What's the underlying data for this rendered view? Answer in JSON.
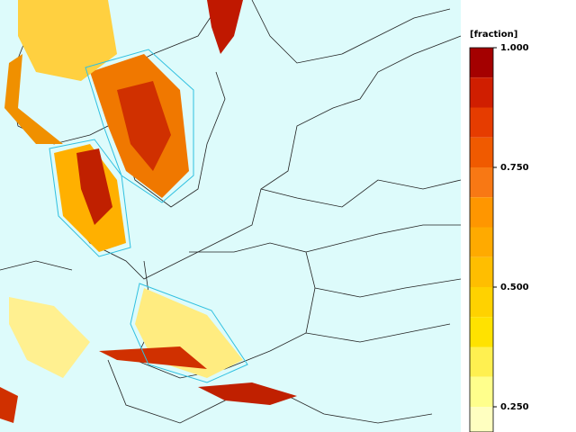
{
  "colorbar": {
    "label": "[fraction]",
    "lim": [
      0.1875,
      1
    ],
    "ticks": [
      {
        "value": 1,
        "label": "1.000"
      },
      {
        "value": 0.75,
        "label": "0.750"
      },
      {
        "value": 0.5,
        "label": "0.500"
      },
      {
        "value": 0.25,
        "label": "0.250"
      }
    ],
    "bounds": [
      1,
      0.9375,
      0.875,
      0.8125,
      0.75,
      0.6875,
      0.625,
      0.5625,
      0.5,
      0.4375,
      0.375,
      0.3125,
      0.25,
      0.1875
    ],
    "colors": [
      "#a40000",
      "#d01e00",
      "#e63c00",
      "#f05a00",
      "#f87814",
      "#ff9600",
      "#ffaa00",
      "#ffbe00",
      "#ffd200",
      "#ffe200",
      "#fff050",
      "#ffff8c",
      "#ffffc0"
    ]
  }
}
